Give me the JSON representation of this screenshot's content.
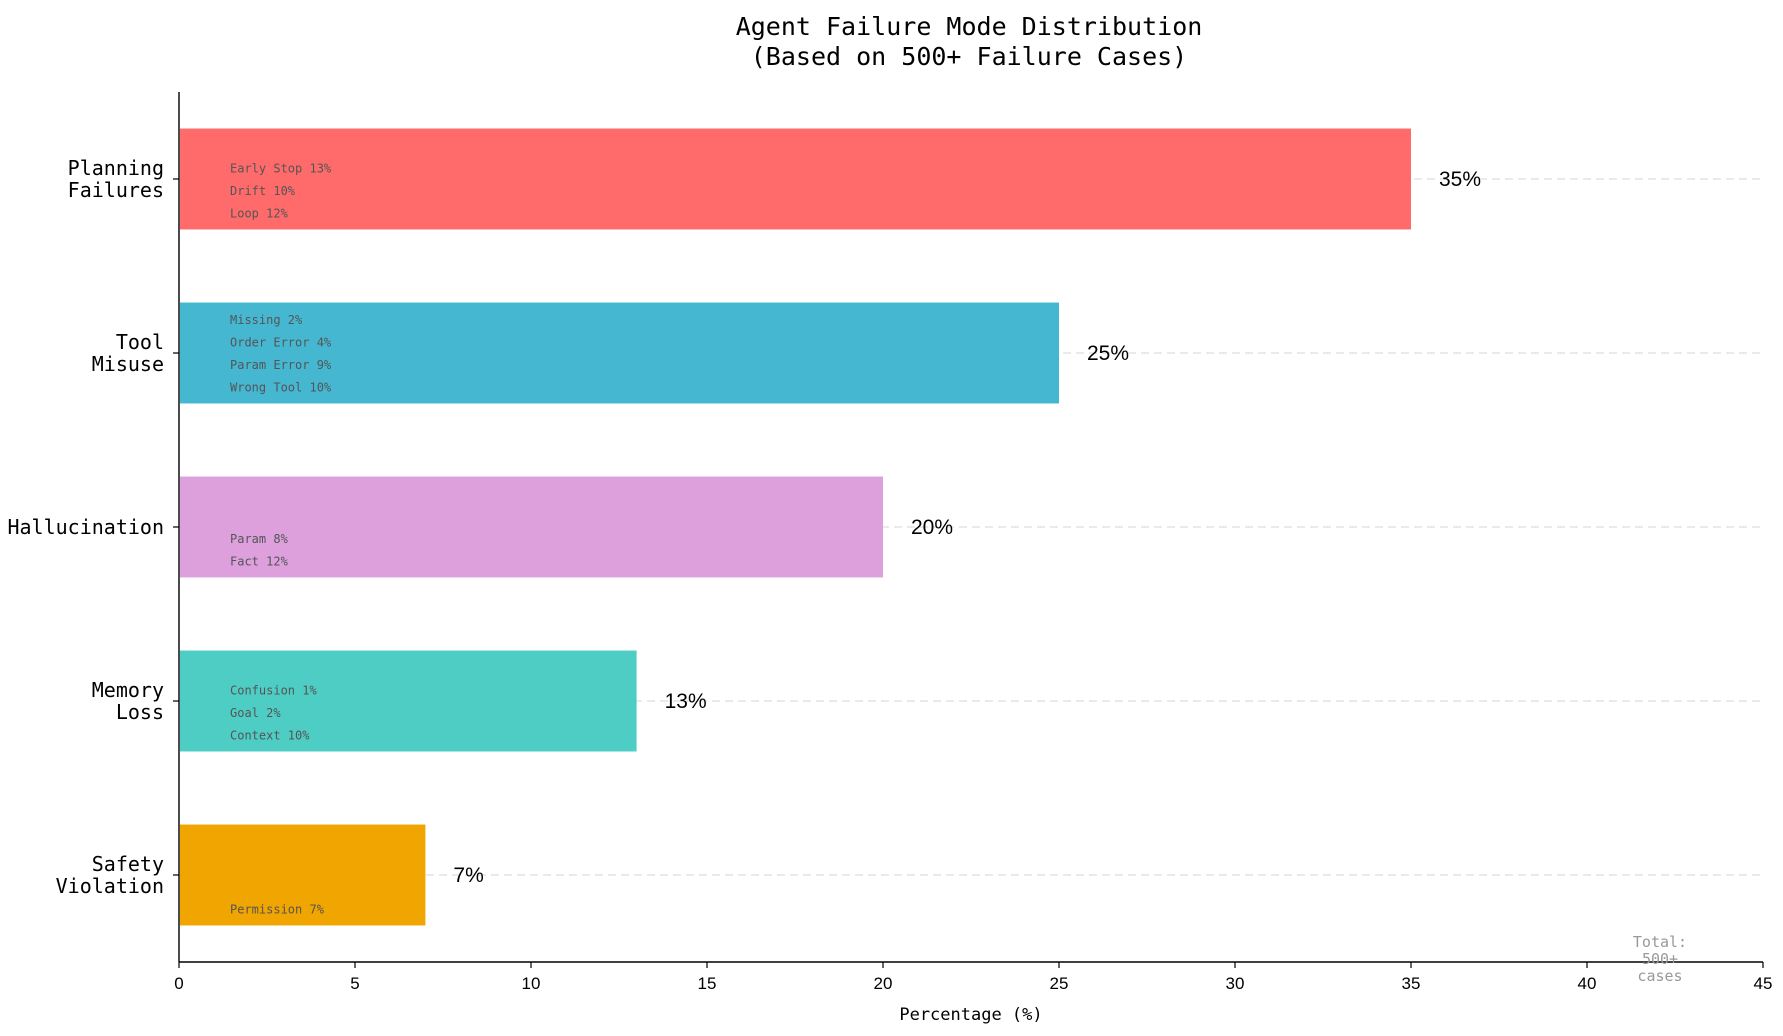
{
  "chart_data": {
    "type": "bar",
    "orientation": "horizontal",
    "title": [
      "Agent Failure Mode Distribution",
      "(Based on 500+ Failure Cases)"
    ],
    "xlabel": "Percentage (%)",
    "ylabel": "",
    "xlim": [
      0,
      45
    ],
    "xticks": [
      0,
      5,
      10,
      15,
      20,
      25,
      30,
      35,
      40,
      45
    ],
    "grid": "dashed horizontal reference lines at each bar",
    "categories": [
      {
        "label": [
          "Planning",
          "Failures"
        ],
        "value": 35,
        "value_label": "35%",
        "color": "#FF6B6B",
        "subcategories": [
          "Early Stop 13%",
          "Drift 10%",
          "Loop 12%"
        ]
      },
      {
        "label": [
          "Tool",
          "Misuse"
        ],
        "value": 25,
        "value_label": "25%",
        "color": "#45B7D1",
        "subcategories": [
          "Missing 2%",
          "Order Error 4%",
          "Param Error 9%",
          "Wrong Tool 10%"
        ]
      },
      {
        "label": [
          "Hallucination"
        ],
        "value": 20,
        "value_label": "20%",
        "color": "#DDA0DD",
        "subcategories": [
          "Param 8%",
          "Fact 12%"
        ]
      },
      {
        "label": [
          "Memory",
          "Loss"
        ],
        "value": 13,
        "value_label": "13%",
        "color": "#4ECDC4",
        "subcategories": [
          "Confusion 1%",
          "Goal 2%",
          "Context 10%"
        ]
      },
      {
        "label": [
          "Safety",
          "Violation"
        ],
        "value": 7,
        "value_label": "7%",
        "color": "#F0A500",
        "subcategories": [
          "Permission 7%"
        ]
      }
    ],
    "annotation": [
      "Total:",
      "500+",
      "cases"
    ]
  }
}
